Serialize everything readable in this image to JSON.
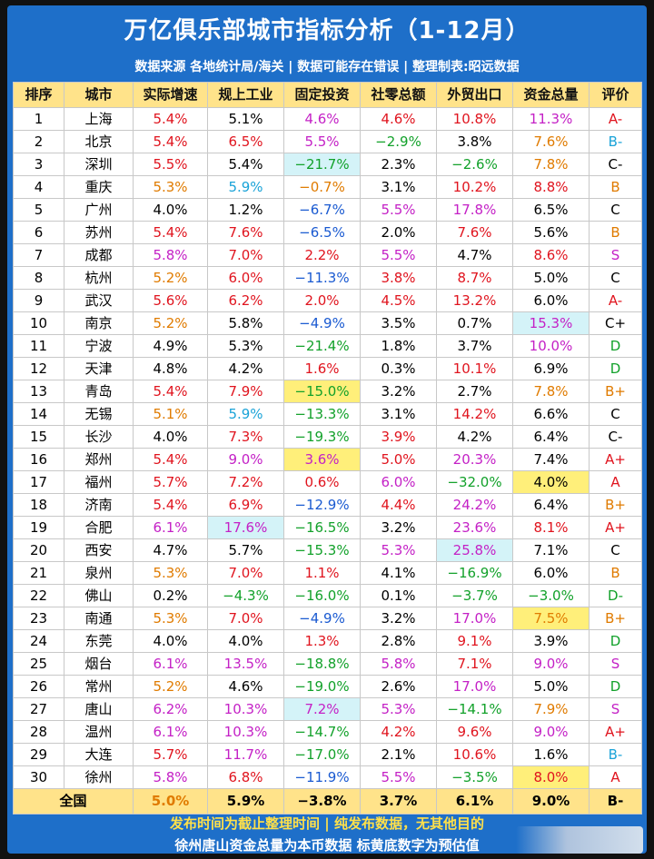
{
  "title": "万亿俱乐部城市指标分析（1-12月）",
  "subtitle": "数据来源 各地统计局/海关 | 数据可能存在错误 | 整理制表:昭远数据",
  "headers": [
    "排序",
    "城市",
    "实际增速",
    "规上工业",
    "固定投资",
    "社零总额",
    "外贸出口",
    "资金总量",
    "评价"
  ],
  "rows": [
    {
      "rank": "1",
      "city": "上海",
      "gdp": "5.4%",
      "ind": "5.1%",
      "inv": "4.6%",
      "retail": "4.6%",
      "export": "10.8%",
      "fund": "11.3%",
      "grade": "A-"
    },
    {
      "rank": "2",
      "city": "北京",
      "gdp": "5.4%",
      "ind": "6.5%",
      "inv": "5.5%",
      "retail": "−2.9%",
      "export": "3.8%",
      "fund": "7.6%",
      "grade": "B-"
    },
    {
      "rank": "3",
      "city": "深圳",
      "gdp": "5.5%",
      "ind": "5.4%",
      "inv": "−21.7%",
      "retail": "2.3%",
      "export": "−2.6%",
      "fund": "7.8%",
      "grade": "C-"
    },
    {
      "rank": "4",
      "city": "重庆",
      "gdp": "5.3%",
      "ind": "5.9%",
      "inv": "−0.7%",
      "retail": "3.1%",
      "export": "10.2%",
      "fund": "8.8%",
      "grade": "B"
    },
    {
      "rank": "5",
      "city": "广州",
      "gdp": "4.0%",
      "ind": "1.2%",
      "inv": "−6.7%",
      "retail": "5.5%",
      "export": "17.8%",
      "fund": "6.5%",
      "grade": "C"
    },
    {
      "rank": "6",
      "city": "苏州",
      "gdp": "5.4%",
      "ind": "7.6%",
      "inv": "−6.5%",
      "retail": "2.0%",
      "export": "7.6%",
      "fund": "5.6%",
      "grade": "B"
    },
    {
      "rank": "7",
      "city": "成都",
      "gdp": "5.8%",
      "ind": "7.0%",
      "inv": "2.2%",
      "retail": "5.5%",
      "export": "4.7%",
      "fund": "8.6%",
      "grade": "S"
    },
    {
      "rank": "8",
      "city": "杭州",
      "gdp": "5.2%",
      "ind": "6.0%",
      "inv": "−11.3%",
      "retail": "3.8%",
      "export": "8.7%",
      "fund": "5.0%",
      "grade": "C"
    },
    {
      "rank": "9",
      "city": "武汉",
      "gdp": "5.6%",
      "ind": "6.2%",
      "inv": "2.0%",
      "retail": "4.5%",
      "export": "13.2%",
      "fund": "6.0%",
      "grade": "A-"
    },
    {
      "rank": "10",
      "city": "南京",
      "gdp": "5.2%",
      "ind": "5.8%",
      "inv": "−4.9%",
      "retail": "3.5%",
      "export": "0.7%",
      "fund": "15.3%",
      "grade": "C+"
    },
    {
      "rank": "11",
      "city": "宁波",
      "gdp": "4.9%",
      "ind": "5.3%",
      "inv": "−21.4%",
      "retail": "1.8%",
      "export": "3.7%",
      "fund": "10.0%",
      "grade": "D"
    },
    {
      "rank": "12",
      "city": "天津",
      "gdp": "4.8%",
      "ind": "4.2%",
      "inv": "1.6%",
      "retail": "0.3%",
      "export": "10.1%",
      "fund": "6.9%",
      "grade": "D"
    },
    {
      "rank": "13",
      "city": "青岛",
      "gdp": "5.4%",
      "ind": "7.9%",
      "inv": "−15.0%",
      "retail": "3.2%",
      "export": "2.7%",
      "fund": "7.8%",
      "grade": "B+"
    },
    {
      "rank": "14",
      "city": "无锡",
      "gdp": "5.1%",
      "ind": "5.9%",
      "inv": "−13.3%",
      "retail": "3.1%",
      "export": "14.2%",
      "fund": "6.6%",
      "grade": "C"
    },
    {
      "rank": "15",
      "city": "长沙",
      "gdp": "4.0%",
      "ind": "7.3%",
      "inv": "−19.3%",
      "retail": "3.9%",
      "export": "4.2%",
      "fund": "6.4%",
      "grade": "C-"
    },
    {
      "rank": "16",
      "city": "郑州",
      "gdp": "5.4%",
      "ind": "9.0%",
      "inv": "3.6%",
      "retail": "5.0%",
      "export": "20.3%",
      "fund": "7.4%",
      "grade": "A+"
    },
    {
      "rank": "17",
      "city": "福州",
      "gdp": "5.7%",
      "ind": "7.2%",
      "inv": "0.6%",
      "retail": "6.0%",
      "export": "−32.0%",
      "fund": "4.0%",
      "grade": "A"
    },
    {
      "rank": "18",
      "city": "济南",
      "gdp": "5.4%",
      "ind": "6.9%",
      "inv": "−12.9%",
      "retail": "4.4%",
      "export": "24.2%",
      "fund": "6.4%",
      "grade": "B+"
    },
    {
      "rank": "19",
      "city": "合肥",
      "gdp": "6.1%",
      "ind": "17.6%",
      "inv": "−16.5%",
      "retail": "3.2%",
      "export": "23.6%",
      "fund": "8.1%",
      "grade": "A+"
    },
    {
      "rank": "20",
      "city": "西安",
      "gdp": "4.7%",
      "ind": "5.7%",
      "inv": "−15.3%",
      "retail": "5.3%",
      "export": "25.8%",
      "fund": "7.1%",
      "grade": "C"
    },
    {
      "rank": "21",
      "city": "泉州",
      "gdp": "5.3%",
      "ind": "7.0%",
      "inv": "1.1%",
      "retail": "4.1%",
      "export": "−16.9%",
      "fund": "6.0%",
      "grade": "B"
    },
    {
      "rank": "22",
      "city": "佛山",
      "gdp": "0.2%",
      "ind": "−4.3%",
      "inv": "−16.0%",
      "retail": "0.1%",
      "export": "−3.7%",
      "fund": "−3.0%",
      "grade": "D-"
    },
    {
      "rank": "23",
      "city": "南通",
      "gdp": "5.3%",
      "ind": "7.0%",
      "inv": "−4.9%",
      "retail": "3.2%",
      "export": "17.0%",
      "fund": "7.5%",
      "grade": "B+"
    },
    {
      "rank": "24",
      "city": "东莞",
      "gdp": "4.0%",
      "ind": "4.0%",
      "inv": "1.3%",
      "retail": "2.8%",
      "export": "9.1%",
      "fund": "3.9%",
      "grade": "D"
    },
    {
      "rank": "25",
      "city": "烟台",
      "gdp": "6.1%",
      "ind": "13.5%",
      "inv": "−18.8%",
      "retail": "5.8%",
      "export": "7.1%",
      "fund": "9.0%",
      "grade": "S"
    },
    {
      "rank": "26",
      "city": "常州",
      "gdp": "5.2%",
      "ind": "4.6%",
      "inv": "−19.0%",
      "retail": "2.6%",
      "export": "17.0%",
      "fund": "5.0%",
      "grade": "D"
    },
    {
      "rank": "27",
      "city": "唐山",
      "gdp": "6.2%",
      "ind": "10.3%",
      "inv": "7.2%",
      "retail": "5.3%",
      "export": "−14.1%",
      "fund": "7.9%",
      "grade": "S"
    },
    {
      "rank": "28",
      "city": "温州",
      "gdp": "6.1%",
      "ind": "10.3%",
      "inv": "−14.7%",
      "retail": "4.2%",
      "export": "9.6%",
      "fund": "9.0%",
      "grade": "A+"
    },
    {
      "rank": "29",
      "city": "大连",
      "gdp": "5.7%",
      "ind": "11.7%",
      "inv": "−17.0%",
      "retail": "2.1%",
      "export": "10.6%",
      "fund": "1.6%",
      "grade": "B-"
    },
    {
      "rank": "30",
      "city": "徐州",
      "gdp": "5.8%",
      "ind": "6.8%",
      "inv": "−11.9%",
      "retail": "5.5%",
      "export": "−3.5%",
      "fund": "8.0%",
      "grade": "A"
    }
  ],
  "total": {
    "label": "全国",
    "gdp": "5.0%",
    "ind": "5.9%",
    "inv": "−3.8%",
    "retail": "3.7%",
    "export": "6.1%",
    "fund": "9.0%",
    "grade": "B-"
  },
  "footer_line1": "发布时间为截止整理时间 | 纯发布数据，无其他目的",
  "footer_line2": "徐州唐山资金总量为本币数据 标黄底数字为预估值",
  "colors": {
    "frame": "#1e6fc9",
    "header_bg": "#ffe38a",
    "highlight_yellow": "#ffef7a",
    "highlight_cyan": "#d4f3f8"
  },
  "cell_styles": {
    "gdp": [
      "red",
      "red",
      "red",
      "orange",
      "black",
      "red",
      "purple",
      "orange",
      "red",
      "orange",
      "black",
      "black",
      "red",
      "orange",
      "black",
      "red",
      "red",
      "red",
      "purple",
      "black",
      "orange",
      "black",
      "orange",
      "black",
      "purple",
      "orange",
      "purple",
      "purple",
      "red",
      "purple"
    ],
    "ind": [
      "black",
      "red",
      "black",
      "cyan",
      "black",
      "red",
      "red",
      "red",
      "red",
      "black",
      "black",
      "black",
      "red",
      "cyan",
      "red",
      "purple",
      "red",
      "red",
      "purple",
      "black",
      "red",
      "green",
      "red",
      "black",
      "purple",
      "black",
      "purple",
      "purple",
      "purple",
      "red"
    ],
    "inv": [
      "purple",
      "purple",
      "green",
      "orange",
      "blue",
      "blue",
      "red",
      "blue",
      "red",
      "blue",
      "green",
      "red",
      "green",
      "green",
      "green",
      "purple",
      "red",
      "blue",
      "green",
      "green",
      "red",
      "green",
      "blue",
      "red",
      "green",
      "green",
      "purple",
      "green",
      "green",
      "blue"
    ],
    "retail": [
      "red",
      "green",
      "black",
      "black",
      "purple",
      "black",
      "purple",
      "red",
      "red",
      "black",
      "black",
      "black",
      "black",
      "black",
      "red",
      "red",
      "purple",
      "red",
      "black",
      "purple",
      "black",
      "black",
      "black",
      "black",
      "purple",
      "black",
      "purple",
      "red",
      "black",
      "purple"
    ],
    "export": [
      "red",
      "black",
      "green",
      "red",
      "purple",
      "red",
      "black",
      "red",
      "red",
      "black",
      "black",
      "red",
      "black",
      "red",
      "black",
      "purple",
      "green",
      "purple",
      "purple",
      "purple",
      "green",
      "green",
      "purple",
      "red",
      "red",
      "purple",
      "green",
      "red",
      "red",
      "green"
    ],
    "fund": [
      "purple",
      "orange",
      "orange",
      "red",
      "black",
      "black",
      "red",
      "black",
      "black",
      "purple",
      "purple",
      "black",
      "orange",
      "black",
      "black",
      "black",
      "black",
      "black",
      "red",
      "black",
      "black",
      "green",
      "orange",
      "black",
      "purple",
      "black",
      "orange",
      "purple",
      "black",
      "red"
    ],
    "grade": [
      "red",
      "cyan",
      "black",
      "orange",
      "black",
      "orange",
      "purple",
      "black",
      "red",
      "black",
      "green",
      "green",
      "orange",
      "black",
      "black",
      "red",
      "red",
      "orange",
      "red",
      "black",
      "orange",
      "green",
      "orange",
      "green",
      "purple",
      "green",
      "purple",
      "red",
      "cyan",
      "red"
    ]
  },
  "cell_highlights": {
    "ind_19": "cyan",
    "inv_3": "cyan",
    "inv_13": "yellow",
    "inv_16": "yellow",
    "inv_27": "cyan",
    "fund_10": "cyan",
    "fund_17": "yellow",
    "fund_23": "yellow",
    "fund_30": "yellow",
    "export_20": "cyan"
  }
}
